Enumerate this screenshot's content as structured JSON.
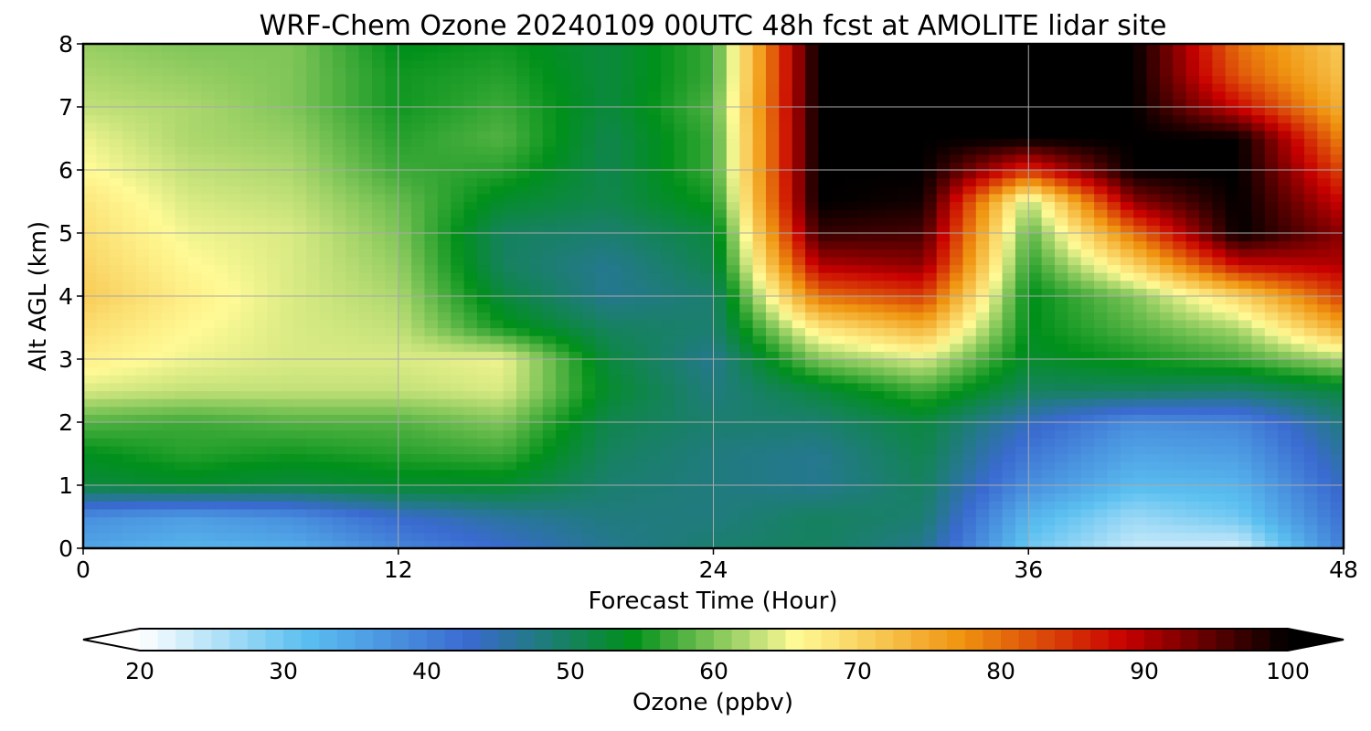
{
  "chart_data": {
    "type": "heatmap",
    "title": "WRF-Chem Ozone  20240109 00UTC 48h fcst at AMOLITE lidar site",
    "xlabel": "Forecast Time (Hour)",
    "ylabel": "Alt AGL (km)",
    "xlim": [
      0,
      48
    ],
    "ylim": [
      0,
      8
    ],
    "x_ticks": [
      0,
      12,
      24,
      36,
      48
    ],
    "y_ticks": [
      0,
      1,
      2,
      3,
      4,
      5,
      6,
      7,
      8
    ],
    "grid": true,
    "x": [
      0,
      4,
      8,
      12,
      16,
      20,
      24,
      28,
      32,
      36,
      40,
      44,
      48
    ],
    "y": [
      0,
      0.5,
      1,
      1.5,
      2,
      2.5,
      3,
      3.5,
      4,
      4.5,
      5,
      5.5,
      6,
      6.5,
      7,
      7.5,
      8
    ],
    "z": [
      [
        35,
        33,
        34,
        39,
        43,
        47,
        49,
        50,
        47,
        30,
        24,
        23,
        40
      ],
      [
        38,
        36,
        38,
        43,
        46,
        48,
        48,
        50,
        49,
        33,
        27,
        30,
        42
      ],
      [
        52,
        53,
        52,
        53,
        53,
        49,
        48,
        47,
        50,
        38,
        32,
        33,
        44
      ],
      [
        54,
        56,
        55,
        56,
        57,
        50,
        48,
        47,
        51,
        41,
        35,
        36,
        46
      ],
      [
        58,
        57,
        58,
        58,
        60,
        51,
        49,
        49,
        52,
        44,
        38,
        39,
        48
      ],
      [
        64,
        63,
        63,
        63,
        64,
        53,
        48,
        52,
        57,
        50,
        50,
        49,
        52
      ],
      [
        67,
        65,
        64,
        64,
        65,
        52,
        47,
        60,
        64,
        53,
        55,
        57,
        62
      ],
      [
        69,
        66,
        64,
        63,
        55,
        50,
        49,
        68,
        74,
        54,
        58,
        62,
        75
      ],
      [
        71,
        67,
        64,
        62,
        52,
        47,
        49,
        80,
        84,
        54,
        60,
        70,
        84
      ],
      [
        70,
        66,
        64,
        61,
        50,
        47,
        51,
        90,
        92,
        56,
        70,
        88,
        90
      ],
      [
        69,
        65,
        64,
        60,
        50,
        49,
        52,
        97,
        96,
        58,
        80,
        100,
        92
      ],
      [
        68,
        64,
        63,
        59,
        53,
        51,
        55,
        100,
        99,
        62,
        92,
        100,
        88
      ],
      [
        66,
        63,
        62,
        57,
        56,
        51,
        57,
        100,
        100,
        85,
        100,
        100,
        83
      ],
      [
        65,
        62,
        61,
        56,
        58,
        51,
        57,
        100,
        100,
        100,
        100,
        100,
        78
      ],
      [
        63,
        62,
        60,
        55,
        57,
        52,
        58,
        100,
        100,
        100,
        100,
        88,
        74
      ],
      [
        62,
        61,
        60,
        55,
        56,
        52,
        57,
        100,
        100,
        100,
        100,
        82,
        72
      ],
      [
        61,
        60,
        60,
        54,
        55,
        52,
        57,
        100,
        100,
        100,
        100,
        80,
        71
      ]
    ],
    "colorbar": {
      "label": "Ozone  (ppbv)",
      "min": 20,
      "max": 100,
      "ticks": [
        20,
        30,
        40,
        50,
        60,
        70,
        80,
        90,
        100
      ],
      "extend": "both",
      "colors": [
        "#ffffff",
        "#5bc0f0",
        "#3a6ad0",
        "#00901a",
        "#fffa96",
        "#f09510",
        "#c80000",
        "#000000"
      ]
    }
  }
}
